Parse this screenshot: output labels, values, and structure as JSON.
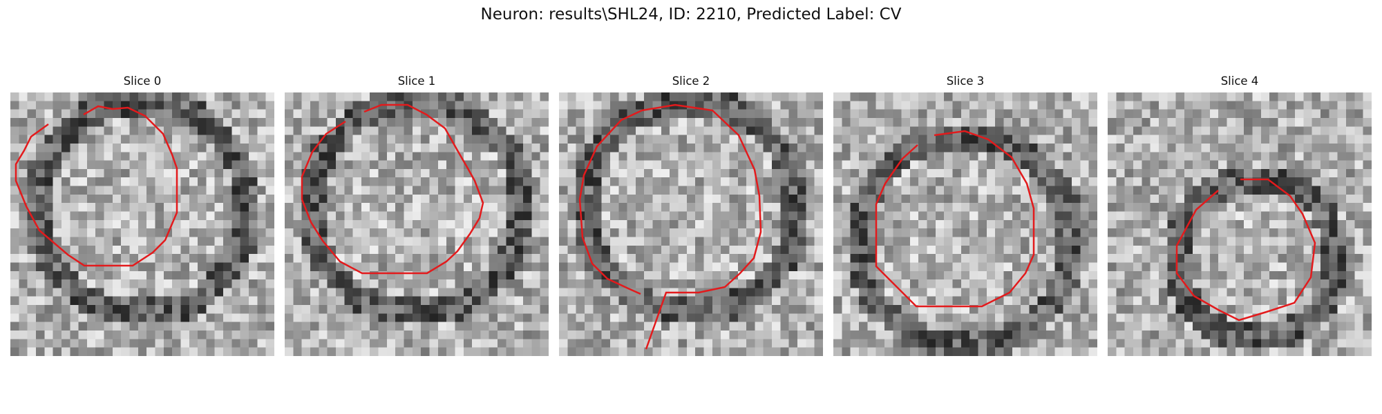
{
  "figure": {
    "title": "Neuron: results\\SHL24, ID: 2210, Predicted Label: CV"
  },
  "panels": [
    {
      "title": "Slice 0",
      "contour_color": "#e31a1c"
    },
    {
      "title": "Slice 1",
      "contour_color": "#e31a1c"
    },
    {
      "title": "Slice 2",
      "contour_color": "#e31a1c"
    },
    {
      "title": "Slice 3",
      "contour_color": "#e31a1c"
    },
    {
      "title": "Slice 4",
      "contour_color": "#e31a1c"
    }
  ]
}
